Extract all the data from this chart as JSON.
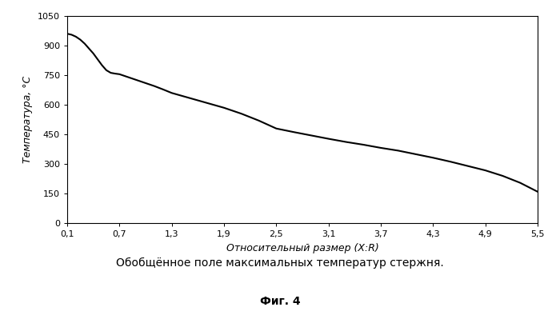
{
  "x_data": [
    0.1,
    0.15,
    0.2,
    0.25,
    0.3,
    0.35,
    0.4,
    0.45,
    0.5,
    0.55,
    0.6,
    0.65,
    0.7,
    0.8,
    0.9,
    1.0,
    1.1,
    1.2,
    1.3,
    1.5,
    1.7,
    1.9,
    2.1,
    2.3,
    2.5,
    2.7,
    2.9,
    3.1,
    3.3,
    3.5,
    3.7,
    3.9,
    4.1,
    4.3,
    4.5,
    4.7,
    4.9,
    5.1,
    5.3,
    5.5
  ],
  "y_data": [
    960,
    955,
    945,
    930,
    910,
    885,
    860,
    830,
    800,
    775,
    762,
    758,
    755,
    740,
    725,
    710,
    695,
    678,
    660,
    635,
    610,
    585,
    555,
    520,
    480,
    462,
    445,
    428,
    412,
    398,
    382,
    368,
    350,
    332,
    312,
    290,
    268,
    240,
    205,
    160
  ],
  "xlim": [
    0.1,
    5.5
  ],
  "ylim": [
    0,
    1050
  ],
  "xticks": [
    0.1,
    0.7,
    1.3,
    1.9,
    2.5,
    3.1,
    3.7,
    4.3,
    4.9,
    5.5
  ],
  "xtick_labels": [
    "0,1",
    "0,7",
    "1,3",
    "1,9",
    "2,5",
    "3,1",
    "3,7",
    "4,3",
    "4,9",
    "5,5"
  ],
  "yticks": [
    0,
    150,
    300,
    450,
    600,
    750,
    900,
    1050
  ],
  "ytick_labels": [
    "0",
    "150",
    "300",
    "450",
    "600",
    "750",
    "900",
    "1050"
  ],
  "xlabel": "Относительный размер (X:R)",
  "ylabel": "Температура, °С",
  "line_color": "#000000",
  "line_width": 1.5,
  "background_color": "#ffffff",
  "caption": "Обобщённое поле максимальных температур стержня.",
  "fig_label": "Фиг. 4"
}
